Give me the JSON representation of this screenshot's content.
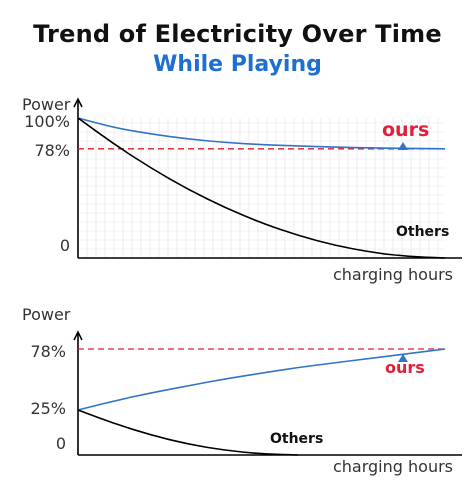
{
  "title": "Trend of Electricity Over Time",
  "subtitle": "While Playing",
  "colors": {
    "ours": "#2f74c8",
    "others": "#000000",
    "reference_line": "#d9232e",
    "ours_label": "#e0203a",
    "subtitle": "#1f6fd1",
    "grid": "#e3e3ea"
  },
  "chart_data": [
    {
      "type": "line",
      "ylabel": "Power",
      "xlabel": "charging hours",
      "y_tick_labels": [
        "100%",
        "78%",
        "0"
      ],
      "y_ticks": [
        100,
        78,
        0
      ],
      "ylim": [
        0,
        100
      ],
      "xlim": [
        0,
        10
      ],
      "grid": true,
      "reference_line": {
        "y": 78,
        "style": "dashed"
      },
      "series": [
        {
          "name": "ours",
          "x": [
            0,
            1,
            2,
            3,
            4,
            5,
            6,
            7,
            8,
            9,
            10
          ],
          "y": [
            100,
            93,
            88.5,
            85,
            82.5,
            81,
            80,
            79.2,
            78.6,
            78.3,
            78
          ]
        },
        {
          "name": "Others",
          "x": [
            0,
            1,
            2,
            3,
            4,
            5,
            6,
            7,
            8,
            9,
            10
          ],
          "y": [
            100,
            81,
            64,
            49,
            36,
            25,
            16,
            9,
            4,
            1,
            0
          ]
        }
      ]
    },
    {
      "type": "line",
      "ylabel": "Power",
      "xlabel": "charging hours",
      "y_tick_labels": [
        "78%",
        "25%",
        "0"
      ],
      "y_ticks": [
        78,
        25,
        0
      ],
      "ylim": [
        0,
        100
      ],
      "xlim": [
        0,
        10
      ],
      "grid": false,
      "reference_line": {
        "y": 78,
        "style": "dashed"
      },
      "series": [
        {
          "name": "ours",
          "x": [
            0,
            1,
            2,
            3,
            4,
            5,
            6,
            7,
            8,
            9,
            10
          ],
          "y": [
            25,
            33,
            40,
            46,
            52,
            57,
            62,
            66,
            70,
            74,
            78
          ]
        },
        {
          "name": "Others",
          "x": [
            0,
            1,
            2,
            3,
            4,
            5,
            6
          ],
          "y": [
            25,
            17.4,
            11,
            6,
            2.6,
            0.6,
            0
          ]
        }
      ]
    }
  ]
}
